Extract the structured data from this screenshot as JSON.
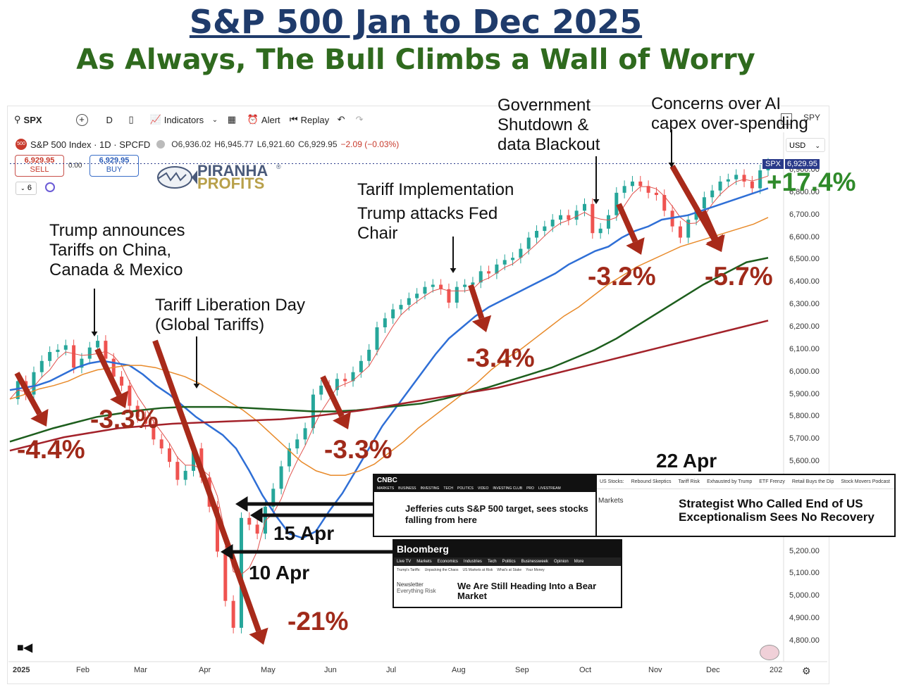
{
  "title": "S&P 500 Jan to Dec 2025",
  "subtitle": "As Always, The Bull Climbs a Wall of Worry",
  "toolbar": {
    "symbol": "SPX",
    "interval": "D",
    "indicators_label": "Indicators",
    "alert_label": "Alert",
    "replay_label": "Replay",
    "compare_symbol": "SPY",
    "currency": "USD"
  },
  "header": {
    "instrument": "S&P 500 Index · 1D · SPCFD",
    "open": "O6,936.02",
    "high": "H6,945.77",
    "low": "L6,921.60",
    "close": "C6,929.95",
    "change": "−2.09 (−0.03%)",
    "sell_price": "6,929.95",
    "sell_label": "SELL",
    "spread": "0.00",
    "buy_price": "6,929.95",
    "buy_label": "BUY",
    "indicator_count": "6",
    "price_tag_symbol": "SPX",
    "price_tag_value": "6,929.95"
  },
  "logo": {
    "line1": "PIRANHA",
    "line2": "PROFITS",
    "mark": "®"
  },
  "chart_data": {
    "type": "line",
    "title": "S&P 500 Jan to Dec 2025",
    "subtitle": "As Always, The Bull Climbs a Wall of Worry",
    "series_instrument": "S&P 500 Index (SPX), daily candles",
    "x_ticks": [
      "2025",
      "Feb",
      "Mar",
      "Apr",
      "May",
      "Jun",
      "Jul",
      "Aug",
      "Sep",
      "Oct",
      "Nov",
      "Dec",
      "202"
    ],
    "y_ticks": [
      "6,900.00",
      "6,800.00",
      "6,700.00",
      "6,600.00",
      "6,500.00",
      "6,400.00",
      "6,300.00",
      "6,200.00",
      "6,100.00",
      "6,000.00",
      "5,900.00",
      "5,800.00",
      "5,700.00",
      "5,600.00",
      "5,200.00",
      "5,100.00",
      "5,000.00",
      "4,900.00",
      "4,800.00"
    ],
    "ylim": [
      4750,
      6980
    ],
    "series": [
      {
        "values": [
          5880,
          5960,
          5900,
          6000,
          6050,
          6090,
          6100,
          6120,
          6020,
          6060,
          6110,
          6140,
          6060,
          5980,
          5940,
          5850,
          5800,
          5770,
          5700,
          5660,
          5600,
          5520,
          5560,
          5660,
          5530,
          5400,
          5200,
          4980,
          4860,
          5350,
          5320,
          5280,
          5400,
          5480,
          5580,
          5660,
          5700,
          5750,
          5900,
          5940,
          5920,
          5970,
          5960,
          6000,
          6050,
          6100,
          6200,
          6240,
          6280,
          6300,
          6330,
          6350,
          6380,
          6390,
          6370,
          6310,
          6380,
          6390,
          6400,
          6450,
          6440,
          6480,
          6500,
          6510,
          6550,
          6600,
          6630,
          6650,
          6680,
          6700,
          6680,
          6720,
          6750,
          6620,
          6640,
          6700,
          6800,
          6830,
          6850,
          6830,
          6800,
          6790,
          6720,
          6650,
          6600,
          6680,
          6730,
          6780,
          6810,
          6850,
          6860,
          6880,
          6850,
          6820,
          6900,
          6930
        ]
      },
      {
        "values": [
          5920,
          5930,
          5940,
          5960,
          5990,
          6020,
          6040,
          6050,
          6040,
          6030,
          5990,
          5940,
          5900,
          5850,
          5800,
          5760,
          5720,
          5660,
          5560,
          5450,
          5360,
          5280,
          5260,
          5290,
          5380,
          5460,
          5560,
          5660,
          5760,
          5840,
          5920,
          6000,
          6080,
          6150,
          6200,
          6250,
          6290,
          6320,
          6350,
          6380,
          6410,
          6440,
          6480,
          6510,
          6540,
          6560,
          6600,
          6630,
          6650,
          6680,
          6690,
          6700,
          6720,
          6740,
          6760,
          6780,
          6800,
          6820
        ]
      },
      {
        "values": [
          5880,
          5900,
          5925,
          5940,
          5960,
          5990,
          6010,
          6020,
          6030,
          6030,
          6020,
          6000,
          5980,
          5950,
          5910,
          5870,
          5830,
          5780,
          5720,
          5660,
          5600,
          5560,
          5540,
          5540,
          5560,
          5590,
          5640,
          5690,
          5750,
          5800,
          5850,
          5900,
          5950,
          6010,
          6060,
          6100,
          6150,
          6200,
          6250,
          6290,
          6340,
          6390,
          6430,
          6470,
          6500,
          6530,
          6560,
          6580,
          6600,
          6620,
          6640,
          6660,
          6690
        ]
      },
      {
        "values": [
          5690,
          5720,
          5750,
          5775,
          5800,
          5815,
          5830,
          5840,
          5845,
          5845,
          5845,
          5840,
          5835,
          5830,
          5825,
          5825,
          5830,
          5840,
          5850,
          5860,
          5880,
          5905,
          5930,
          5960,
          5990,
          6020,
          6060,
          6100,
          6150,
          6210,
          6270,
          6330,
          6390,
          6440,
          6490,
          6510
        ]
      },
      {
        "values": [
          5650,
          5680,
          5710,
          5730,
          5750,
          5760,
          5770,
          5775,
          5780,
          5785,
          5790,
          5800,
          5815,
          5830,
          5850,
          5870,
          5890,
          5910,
          5930,
          5960,
          5990,
          6020,
          6050,
          6080,
          6110,
          6140,
          6170,
          6200,
          6230
        ]
      }
    ],
    "pullbacks": [
      "-4.4%",
      "-3.3%",
      "-21%",
      "-3.3%",
      "-3.4%",
      "-3.2%",
      "-5.7%"
    ],
    "ytd_return": "+17.4%"
  },
  "annotations": {
    "tariffs_china": "Trump announces\nTariffs on China,\nCanada & Mexico",
    "liberation_day": "Tariff Liberation Day\n(Global Tariffs)",
    "tariff_impl": "Tariff Implementation",
    "fed_chair": "Trump attacks Fed\nChair",
    "shutdown": "Government\nShutdown &\ndata Blackout",
    "ai_capex": "Concerns over AI\ncapex over-spending",
    "date_15apr": "15 Apr",
    "date_10apr": "10 Apr",
    "date_22apr": "22 Apr"
  },
  "news": {
    "cnbc_logo": "CNBC",
    "cnbc_nav": [
      "MARKETS",
      "BUSINESS",
      "INVESTING",
      "TECH",
      "POLITICS",
      "VIDEO",
      "INVESTING CLUB",
      "PRO",
      "LIVESTREAM"
    ],
    "cnbc_headline": "Jefferies cuts S&P 500 target, sees stocks falling from here",
    "ws_nav": [
      "US Stocks:",
      "Rebound Skeptics",
      "Tariff Risk",
      "Exhausted by Trump",
      "ETF Frenzy",
      "Retail Buys the Dip",
      "Stock Movers Podcast"
    ],
    "ws_section": "Markets",
    "ws_headline": "Strategist Who Called End of US Exceptionalism Sees No Recovery",
    "bbg_logo": "Bloomberg",
    "bbg_nav": [
      "Live TV",
      "Markets",
      "Economics",
      "Industries",
      "Tech",
      "Politics",
      "Businessweek",
      "Opinion",
      "More"
    ],
    "bbg_sub": [
      "Trump's Tariffs:",
      "Unpacking the Chaos",
      "US Markets at Risk",
      "What's at Stake",
      "Your Money"
    ],
    "bbg_side1": "Newsletter",
    "bbg_side2": "Everything Risk",
    "bbg_headline": "We Are Still Heading Into a Bear Market"
  },
  "colors": {
    "up_candle": "#26a69a",
    "down_candle": "#ef5350",
    "ma_fast": "#e0524d",
    "ma_blue": "#2f6fd6",
    "ma_orange": "#e88a2a",
    "ma_green": "#1d5e1d",
    "ma_maroon": "#a3222a",
    "arrow": "#a82a1a"
  }
}
